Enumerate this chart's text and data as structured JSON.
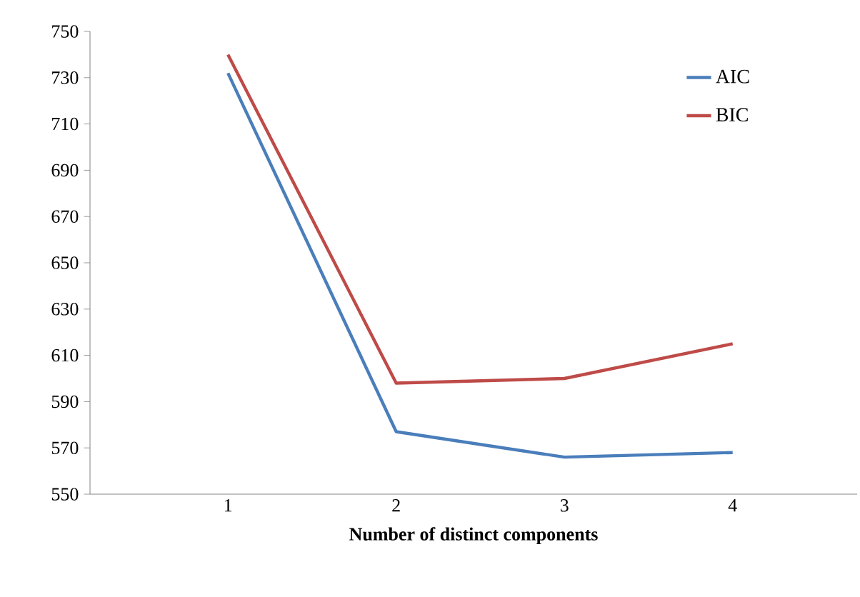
{
  "chart_data": {
    "type": "line",
    "xlabel": "Number of distinct components",
    "categories": [
      "1",
      "2",
      "3",
      "4"
    ],
    "series": [
      {
        "name": "AIC",
        "color": "#4a7ebb",
        "values": [
          732,
          577,
          566,
          568
        ]
      },
      {
        "name": "BIC",
        "color": "#be4b48",
        "values": [
          740,
          598,
          600,
          615
        ]
      }
    ],
    "ylim": [
      550,
      750
    ],
    "yticks": [
      550,
      570,
      590,
      610,
      630,
      650,
      670,
      690,
      710,
      730,
      750
    ],
    "legend": "top right",
    "marker": "none",
    "line_style": "solid",
    "grid": false
  }
}
